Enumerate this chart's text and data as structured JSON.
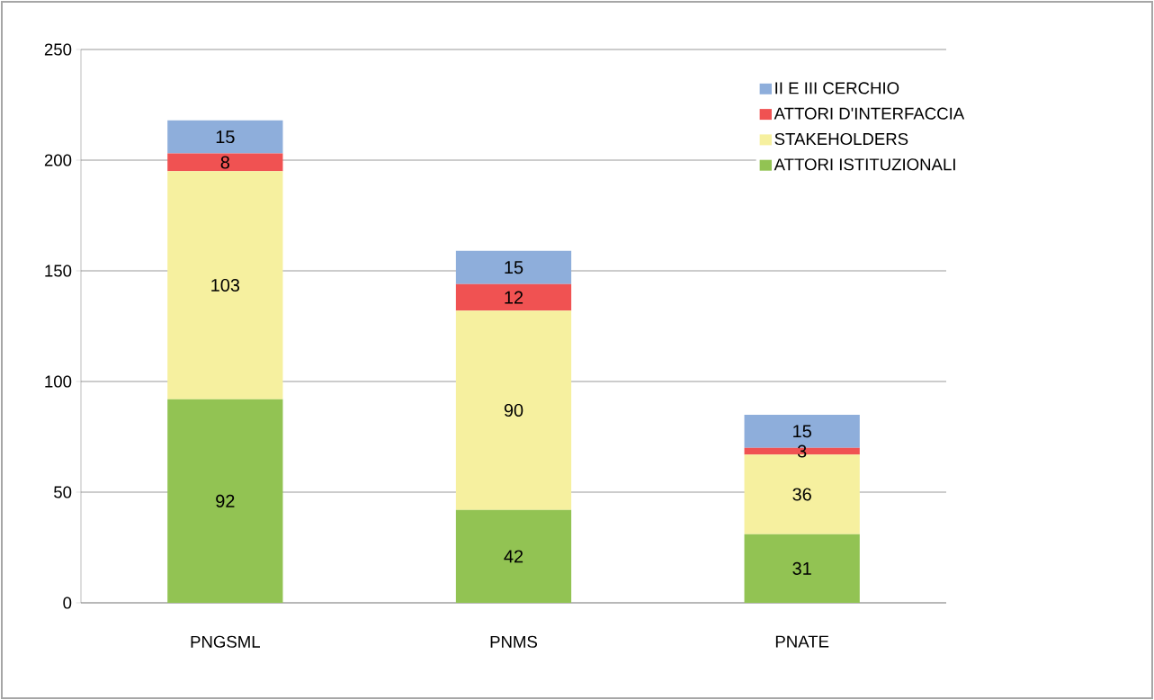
{
  "chart_data": {
    "type": "bar",
    "stacked": true,
    "categories": [
      "PNGSML",
      "PNMS",
      "PNATE"
    ],
    "series": [
      {
        "name": "ATTORI ISTITUZIONALI",
        "color": "#92c353",
        "values": [
          92,
          42,
          31
        ]
      },
      {
        "name": "STAKEHOLDERS",
        "color": "#f6f09f",
        "values": [
          103,
          90,
          36
        ]
      },
      {
        "name": "ATTORI D'INTERFACCIA",
        "color": "#f05252",
        "values": [
          8,
          12,
          3
        ]
      },
      {
        "name": "II E III CERCHIO",
        "color": "#8eaedb",
        "values": [
          15,
          15,
          15
        ]
      }
    ],
    "ylim": [
      0,
      250
    ],
    "yticks": [
      0,
      50,
      100,
      150,
      200,
      250
    ],
    "grid": "y",
    "legend": "top right",
    "data_labels": true
  }
}
